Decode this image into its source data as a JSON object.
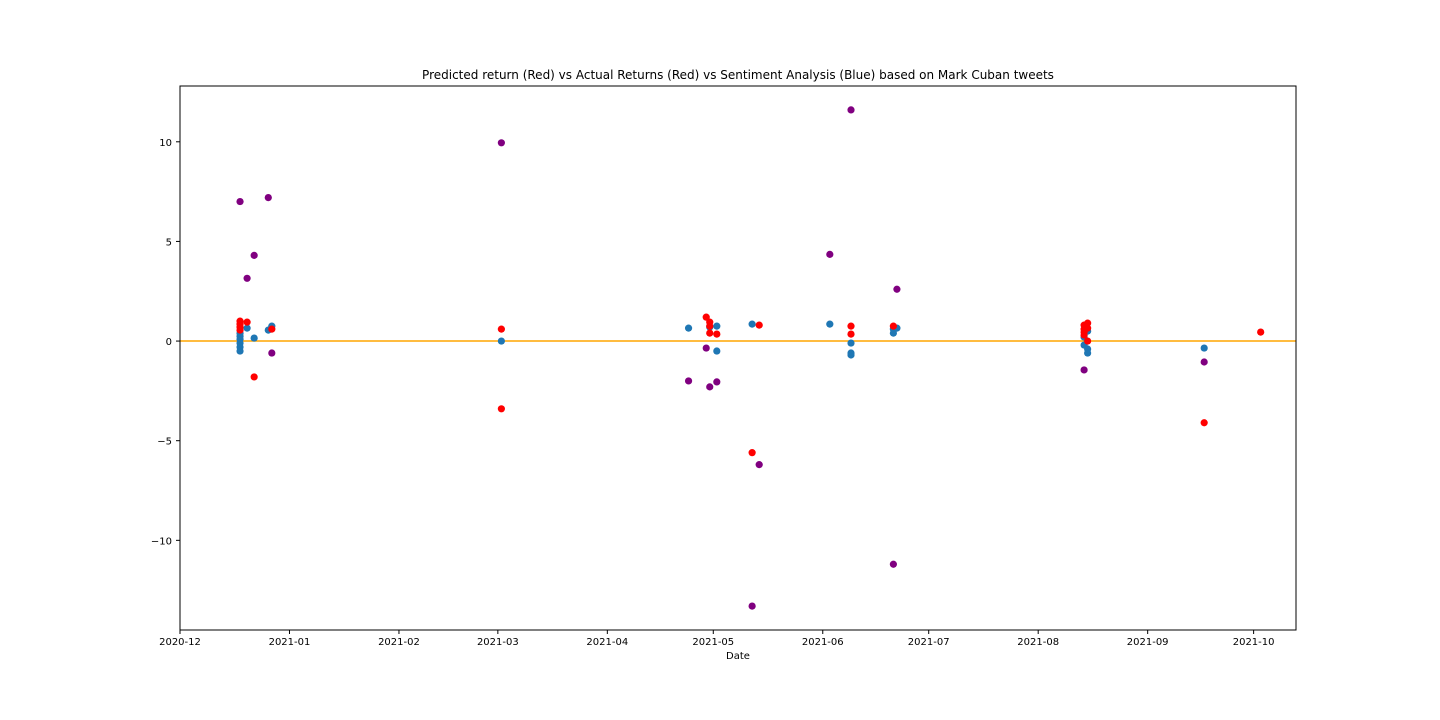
{
  "chart_data": {
    "type": "scatter",
    "title": "Predicted return (Red) vs Actual Returns (Red) vs Sentiment Analysis (Blue) based on Mark Cuban tweets",
    "xlabel": "Date",
    "ylabel": "",
    "x_axis_type": "date",
    "xlim": [
      "2020-12-01",
      "2021-10-13"
    ],
    "ylim": [
      -14.5,
      12.8
    ],
    "x_ticks": [
      "2020-12",
      "2021-01",
      "2021-02",
      "2021-03",
      "2021-04",
      "2021-05",
      "2021-06",
      "2021-07",
      "2021-08",
      "2021-09",
      "2021-10"
    ],
    "x_tick_dates": [
      "2020-12-01",
      "2021-01-01",
      "2021-02-01",
      "2021-03-01",
      "2021-04-01",
      "2021-05-01",
      "2021-06-01",
      "2021-07-01",
      "2021-08-01",
      "2021-09-01",
      "2021-10-01"
    ],
    "y_ticks": [
      10,
      5,
      0,
      -5,
      -10
    ],
    "y_tick_labels": [
      "10",
      "5",
      "0",
      "−5",
      "−10"
    ],
    "grid": false,
    "legend": "none",
    "reference_line": {
      "y": 0,
      "color": "#ffa500"
    },
    "series": [
      {
        "color": "#1f77b4",
        "points": [
          [
            "2020-12-18",
            0.1
          ],
          [
            "2020-12-18",
            0.25
          ],
          [
            "2020-12-18",
            0.4
          ],
          [
            "2020-12-18",
            -0.1
          ],
          [
            "2020-12-18",
            -0.3
          ],
          [
            "2020-12-18",
            -0.5
          ],
          [
            "2020-12-20",
            0.65
          ],
          [
            "2020-12-22",
            0.15
          ],
          [
            "2020-12-26",
            0.55
          ],
          [
            "2020-12-27",
            0.75
          ],
          [
            "2021-03-02",
            0.0
          ],
          [
            "2021-04-24",
            0.65
          ],
          [
            "2021-04-30",
            0.7
          ],
          [
            "2021-05-02",
            0.75
          ],
          [
            "2021-05-02",
            -0.5
          ],
          [
            "2021-05-12",
            0.85
          ],
          [
            "2021-06-03",
            0.85
          ],
          [
            "2021-06-09",
            -0.1
          ],
          [
            "2021-06-09",
            -0.6
          ],
          [
            "2021-06-09",
            -0.7
          ],
          [
            "2021-06-21",
            0.6
          ],
          [
            "2021-06-21",
            0.4
          ],
          [
            "2021-06-22",
            0.65
          ],
          [
            "2021-08-14",
            0.2
          ],
          [
            "2021-08-14",
            -0.2
          ],
          [
            "2021-08-15",
            0.5
          ],
          [
            "2021-08-15",
            -0.4
          ],
          [
            "2021-08-15",
            -0.6
          ],
          [
            "2021-09-17",
            -0.35
          ]
        ]
      },
      {
        "color": "#ff0000",
        "points": [
          [
            "2020-12-18",
            1.0
          ],
          [
            "2020-12-18",
            0.85
          ],
          [
            "2020-12-18",
            0.7
          ],
          [
            "2020-12-18",
            0.55
          ],
          [
            "2020-12-20",
            0.95
          ],
          [
            "2020-12-22",
            -1.8
          ],
          [
            "2020-12-27",
            0.6
          ],
          [
            "2021-03-02",
            0.6
          ],
          [
            "2021-03-02",
            -3.4
          ],
          [
            "2021-04-29",
            1.2
          ],
          [
            "2021-04-30",
            0.95
          ],
          [
            "2021-04-30",
            0.75
          ],
          [
            "2021-04-30",
            0.4
          ],
          [
            "2021-05-02",
            0.35
          ],
          [
            "2021-05-12",
            -5.6
          ],
          [
            "2021-05-14",
            0.8
          ],
          [
            "2021-06-09",
            0.75
          ],
          [
            "2021-06-09",
            0.35
          ],
          [
            "2021-06-21",
            0.75
          ],
          [
            "2021-08-14",
            0.8
          ],
          [
            "2021-08-14",
            0.6
          ],
          [
            "2021-08-14",
            0.45
          ],
          [
            "2021-08-14",
            0.3
          ],
          [
            "2021-08-15",
            0.9
          ],
          [
            "2021-08-15",
            0.65
          ],
          [
            "2021-08-15",
            0.0
          ],
          [
            "2021-09-17",
            -4.1
          ],
          [
            "2021-10-03",
            0.45
          ]
        ]
      },
      {
        "color": "#800080",
        "points": [
          [
            "2020-12-18",
            7.0
          ],
          [
            "2020-12-20",
            3.15
          ],
          [
            "2020-12-22",
            4.3
          ],
          [
            "2020-12-26",
            7.2
          ],
          [
            "2020-12-27",
            -0.6
          ],
          [
            "2021-03-02",
            9.95
          ],
          [
            "2021-04-24",
            -2.0
          ],
          [
            "2021-04-29",
            -0.35
          ],
          [
            "2021-04-30",
            -2.3
          ],
          [
            "2021-05-02",
            -2.05
          ],
          [
            "2021-05-12",
            -13.3
          ],
          [
            "2021-05-14",
            -6.2
          ],
          [
            "2021-06-03",
            4.35
          ],
          [
            "2021-06-09",
            11.6
          ],
          [
            "2021-06-21",
            -11.2
          ],
          [
            "2021-06-22",
            2.6
          ],
          [
            "2021-08-14",
            -1.45
          ],
          [
            "2021-09-17",
            -1.05
          ]
        ]
      }
    ]
  }
}
